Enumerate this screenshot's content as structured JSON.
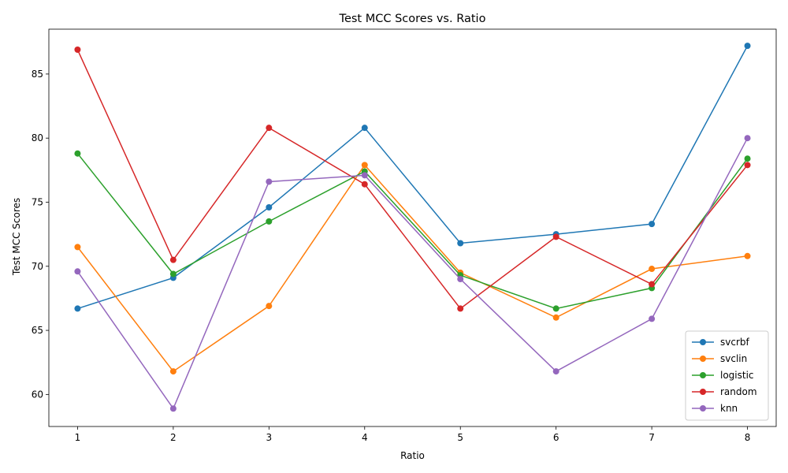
{
  "chart_data": {
    "type": "line",
    "title": "Test MCC Scores vs. Ratio",
    "xlabel": "Ratio",
    "ylabel": "Test MCC Scores",
    "x": [
      1,
      2,
      3,
      4,
      5,
      6,
      7,
      8
    ],
    "xlim": [
      0.7,
      8.3
    ],
    "ylim": [
      57.5,
      88.5
    ],
    "yticks": [
      60,
      65,
      70,
      75,
      80,
      85
    ],
    "grid": false,
    "legend_position": "lower-right",
    "series": [
      {
        "name": "svcrbf",
        "color": "#1f77b4",
        "values": [
          66.7,
          69.1,
          74.6,
          80.8,
          71.8,
          72.5,
          73.3,
          87.2
        ]
      },
      {
        "name": "svclin",
        "color": "#ff7f0e",
        "values": [
          71.5,
          61.8,
          66.9,
          77.9,
          69.5,
          66.0,
          69.8,
          70.8
        ]
      },
      {
        "name": "logistic",
        "color": "#2ca02c",
        "values": [
          78.8,
          69.4,
          73.5,
          77.4,
          69.3,
          66.7,
          68.3,
          78.4
        ]
      },
      {
        "name": "random",
        "color": "#d62728",
        "values": [
          86.9,
          70.5,
          80.8,
          76.4,
          66.7,
          72.3,
          68.6,
          77.9
        ]
      },
      {
        "name": "knn",
        "color": "#9467bd",
        "values": [
          69.6,
          58.9,
          76.6,
          77.1,
          69.0,
          61.8,
          65.9,
          80.0
        ]
      }
    ]
  }
}
